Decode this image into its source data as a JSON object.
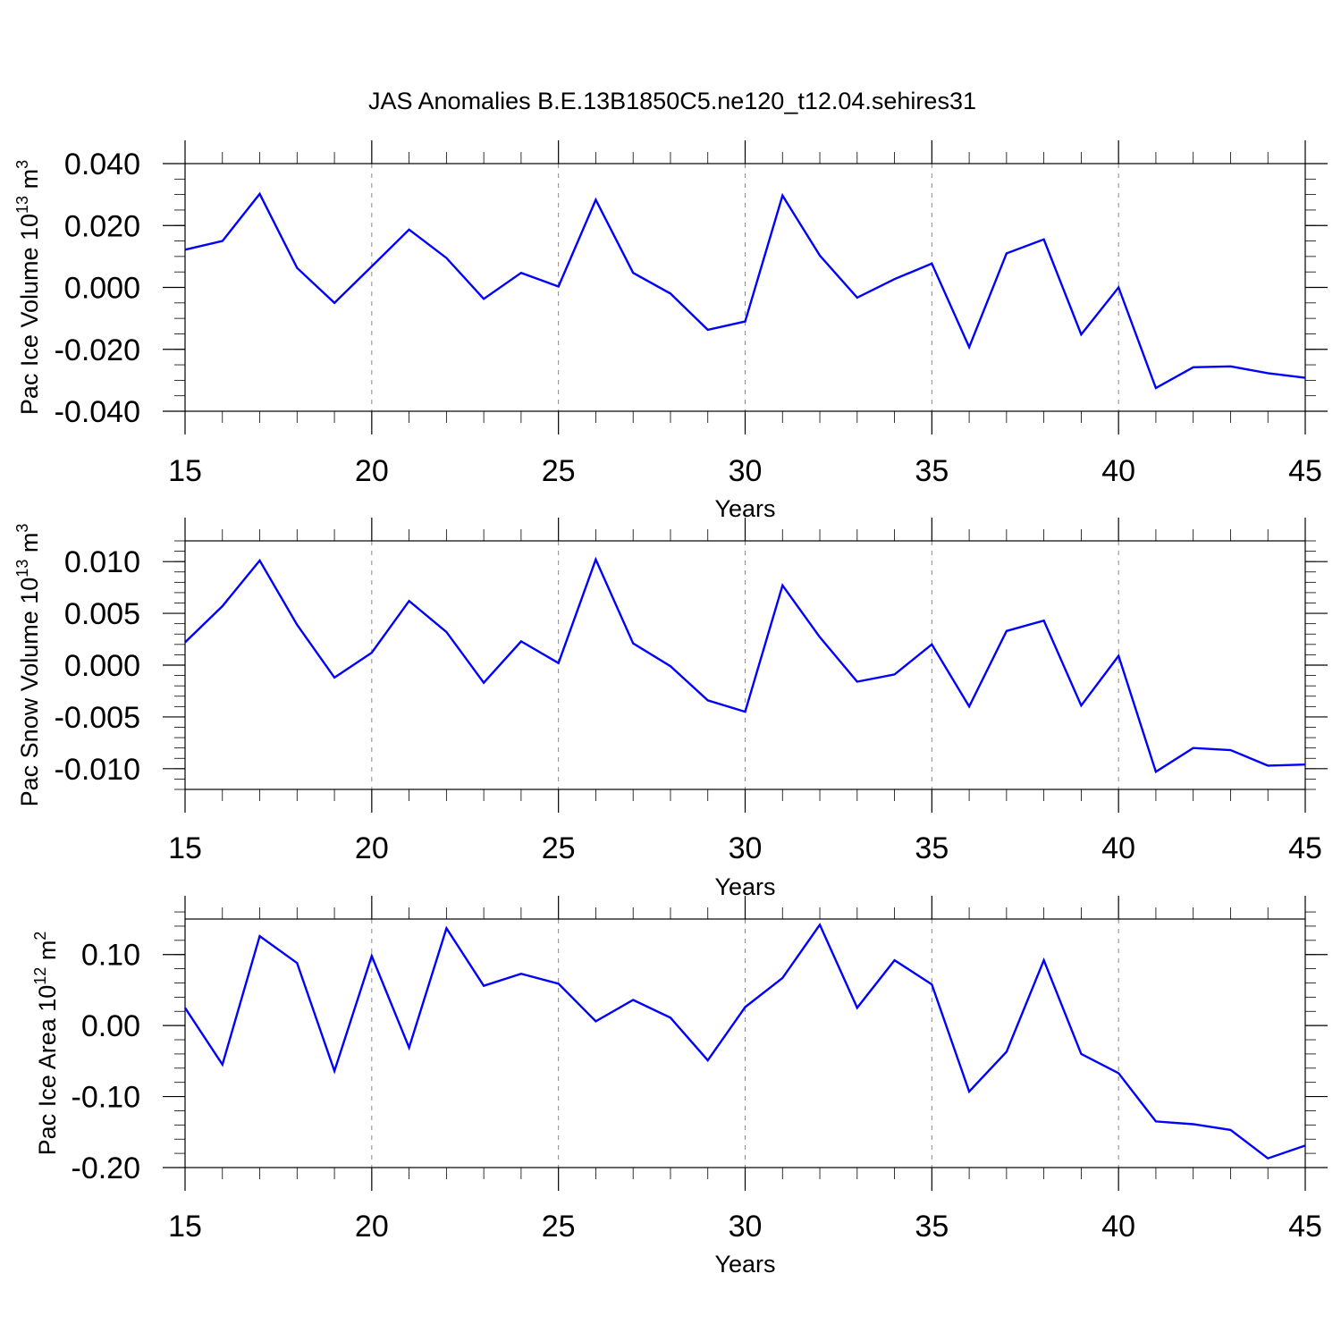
{
  "chart_data": {
    "title": "JAS Anomalies B.E.13B1850C5.ne120_t12.04.sehires31",
    "panels": [
      {
        "type": "line",
        "ylabel": "Pac Ice Volume 10",
        "ylabel_exp": "13",
        "ylabel_unit": " m",
        "ylabel_unit_exp": "3",
        "xlabel": "Years",
        "xlim": [
          15,
          45
        ],
        "ylim": [
          -0.04,
          0.04
        ],
        "xticks": [
          15,
          20,
          25,
          30,
          35,
          40,
          45
        ],
        "yticks": [
          -0.04,
          -0.02,
          0.0,
          0.02,
          0.04
        ],
        "ytick_labels": [
          "-0.040",
          "-0.020",
          "0.000",
          "0.020",
          "0.040"
        ],
        "yminor": 0.005,
        "x": [
          15,
          16,
          17,
          18,
          19,
          20,
          21,
          22,
          23,
          24,
          25,
          26,
          27,
          28,
          29,
          30,
          31,
          32,
          33,
          34,
          35,
          36,
          37,
          38,
          39,
          40,
          41,
          42,
          43,
          44,
          45
        ],
        "values": [
          0.0122,
          0.015,
          0.0302,
          0.0063,
          -0.005,
          0.0068,
          0.0187,
          0.0095,
          -0.0037,
          0.0047,
          0.0003,
          0.0283,
          0.0047,
          -0.002,
          -0.0137,
          -0.011,
          0.0297,
          0.0103,
          -0.0033,
          0.0027,
          0.0077,
          -0.0193,
          0.011,
          0.0155,
          -0.0152,
          0.0,
          -0.0325,
          -0.0258,
          -0.0255,
          -0.0277,
          -0.0292
        ]
      },
      {
        "type": "line",
        "ylabel": "Pac Snow Volume 10",
        "ylabel_exp": "13",
        "ylabel_unit": " m",
        "ylabel_unit_exp": "3",
        "xlabel": "Years",
        "xlim": [
          15,
          45
        ],
        "ylim": [
          -0.012,
          0.012
        ],
        "xticks": [
          15,
          20,
          25,
          30,
          35,
          40,
          45
        ],
        "yticks": [
          -0.01,
          -0.005,
          0.0,
          0.005,
          0.01
        ],
        "ytick_labels": [
          "-0.010",
          "-0.005",
          "0.000",
          "0.005",
          "0.010"
        ],
        "yminor": 0.001,
        "x": [
          15,
          16,
          17,
          18,
          19,
          20,
          21,
          22,
          23,
          24,
          25,
          26,
          27,
          28,
          29,
          30,
          31,
          32,
          33,
          34,
          35,
          36,
          37,
          38,
          39,
          40,
          41,
          42,
          43,
          44,
          45
        ],
        "values": [
          0.0022,
          0.0057,
          0.0101,
          0.0039,
          -0.0012,
          0.0012,
          0.0062,
          0.0032,
          -0.0017,
          0.0023,
          0.0002,
          0.0102,
          0.0021,
          -0.0001,
          -0.0034,
          -0.0045,
          0.0077,
          0.0027,
          -0.0016,
          -0.0009,
          0.002,
          -0.004,
          0.0033,
          0.0043,
          -0.0039,
          0.0009,
          -0.0103,
          -0.008,
          -0.0082,
          -0.0097,
          -0.0096
        ]
      },
      {
        "type": "line",
        "ylabel": "Pac Ice Area 10",
        "ylabel_exp": "12",
        "ylabel_unit": " m",
        "ylabel_unit_exp": "2",
        "xlabel": "Years",
        "xlim": [
          15,
          45
        ],
        "ylim": [
          -0.2,
          0.15
        ],
        "xticks": [
          15,
          20,
          25,
          30,
          35,
          40,
          45
        ],
        "yticks": [
          -0.2,
          -0.1,
          0.0,
          0.1
        ],
        "ytick_labels": [
          "-0.20",
          "-0.10",
          "0.00",
          "0.10"
        ],
        "yminor": 0.02,
        "x": [
          15,
          16,
          17,
          18,
          19,
          20,
          21,
          22,
          23,
          24,
          25,
          26,
          27,
          28,
          29,
          30,
          31,
          32,
          33,
          34,
          35,
          36,
          37,
          38,
          39,
          40,
          41,
          42,
          43,
          44,
          45
        ],
        "values": [
          0.025,
          -0.055,
          0.126,
          0.088,
          -0.064,
          0.098,
          -0.031,
          0.137,
          0.056,
          0.073,
          0.059,
          0.006,
          0.036,
          0.011,
          -0.049,
          0.026,
          0.067,
          0.142,
          0.025,
          0.092,
          0.058,
          -0.093,
          -0.037,
          0.092,
          -0.04,
          -0.067,
          -0.135,
          -0.139,
          -0.147,
          -0.187,
          -0.169
        ]
      }
    ]
  }
}
